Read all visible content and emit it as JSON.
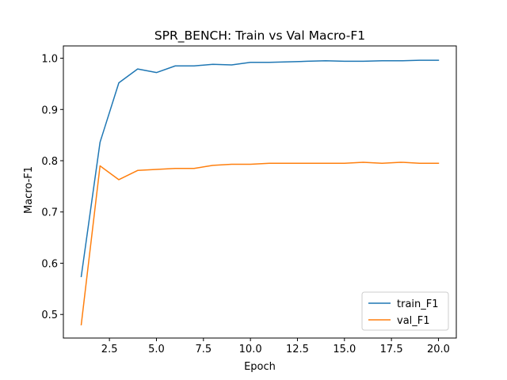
{
  "chart_data": {
    "type": "line",
    "title": "SPR_BENCH: Train vs Val Macro-F1",
    "xlabel": "Epoch",
    "ylabel": "Macro-F1",
    "xlim": [
      0.05,
      20.95
    ],
    "ylim": [
      0.454,
      1.024
    ],
    "xticks": [
      2.5,
      5.0,
      7.5,
      10.0,
      12.5,
      15.0,
      17.5,
      20.0
    ],
    "xtick_labels": [
      "2.5",
      "5.0",
      "7.5",
      "10.0",
      "12.5",
      "15.0",
      "17.5",
      "20.0"
    ],
    "yticks": [
      0.5,
      0.6,
      0.7,
      0.8,
      0.9,
      1.0
    ],
    "ytick_labels": [
      "0.5",
      "0.6",
      "0.7",
      "0.8",
      "0.9",
      "1.0"
    ],
    "grid": false,
    "legend_position": "lower-right",
    "x": [
      1,
      2,
      3,
      4,
      5,
      6,
      7,
      8,
      9,
      10,
      11,
      12,
      13,
      14,
      15,
      16,
      17,
      18,
      19,
      20
    ],
    "series": [
      {
        "name": "train_F1",
        "color": "#1f77b4",
        "values": [
          0.574,
          0.836,
          0.952,
          0.979,
          0.972,
          0.985,
          0.985,
          0.988,
          0.987,
          0.992,
          0.992,
          0.993,
          0.994,
          0.995,
          0.994,
          0.994,
          0.995,
          0.995,
          0.996,
          0.996
        ]
      },
      {
        "name": "val_F1",
        "color": "#ff7f0e",
        "values": [
          0.48,
          0.79,
          0.763,
          0.781,
          0.783,
          0.785,
          0.785,
          0.791,
          0.793,
          0.793,
          0.795,
          0.795,
          0.795,
          0.795,
          0.795,
          0.797,
          0.795,
          0.797,
          0.795,
          0.795
        ]
      }
    ]
  }
}
